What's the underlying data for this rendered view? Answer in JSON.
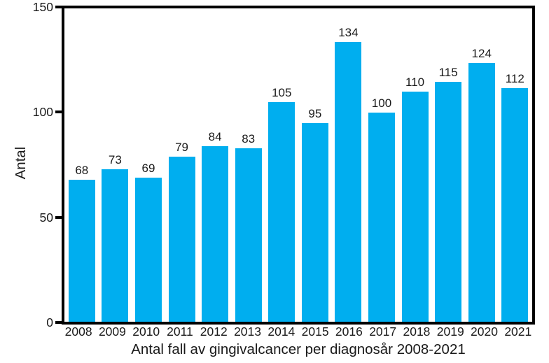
{
  "chart_data": {
    "type": "bar",
    "title": "Antal fall av gingivalcancer per diagnosår 2008-2021",
    "xlabel": "",
    "ylabel": "Antal",
    "categories": [
      "2008",
      "2009",
      "2010",
      "2011",
      "2012",
      "2013",
      "2014",
      "2015",
      "2016",
      "2017",
      "2018",
      "2019",
      "2020",
      "2021"
    ],
    "values": [
      68,
      73,
      69,
      79,
      84,
      83,
      105,
      95,
      134,
      100,
      110,
      115,
      124,
      112
    ],
    "ylim": [
      0,
      150
    ],
    "yticks": [
      0,
      50,
      100,
      150
    ],
    "grid": false,
    "legend": "none",
    "data_labels": true,
    "bar_color": "#00AEEF",
    "axis_color": "#000000",
    "text_color": "#1a1a1a"
  }
}
